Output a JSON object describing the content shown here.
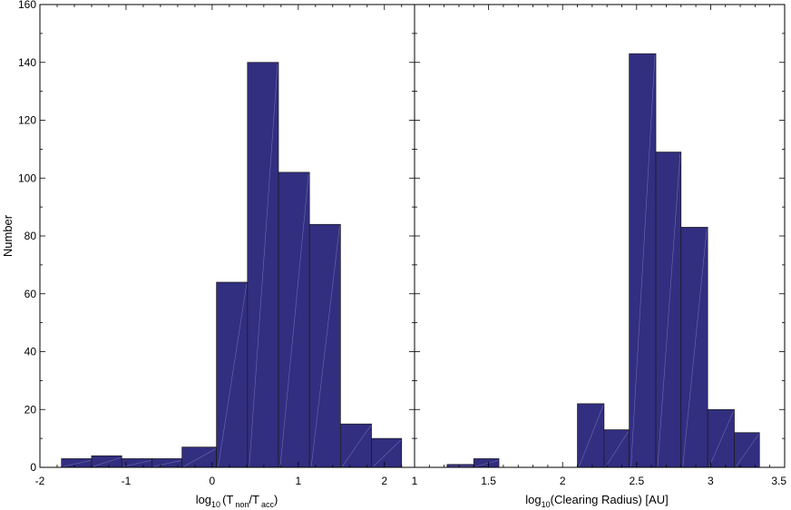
{
  "figure": {
    "ylabel": "Number"
  },
  "chart_data": [
    {
      "type": "bar",
      "xlabel_main": "log",
      "xlabel_sub1": "10",
      "xlabel_open": "(T",
      "xlabel_sub2": "non",
      "xlabel_mid": "/T",
      "xlabel_sub3": "acc",
      "xlabel_close": ")",
      "ylabel": "Number",
      "xlim": [
        -2,
        2.35
      ],
      "ylim": [
        0,
        160
      ],
      "x_ticks": [
        -2,
        -1,
        0,
        1,
        2
      ],
      "x_tick_labels": [
        "-2",
        "-1",
        "0",
        "1",
        "2"
      ],
      "y_ticks": [
        0,
        20,
        40,
        60,
        80,
        100,
        120,
        140,
        160
      ],
      "y_tick_labels": [
        "0",
        "20",
        "40",
        "60",
        "80",
        "100",
        "120",
        "140",
        "160"
      ],
      "bins": [
        {
          "x0": -1.75,
          "x1": -1.4,
          "value": 3
        },
        {
          "x0": -1.4,
          "x1": -1.05,
          "value": 4
        },
        {
          "x0": -1.05,
          "x1": -0.7,
          "value": 3
        },
        {
          "x0": -0.7,
          "x1": -0.35,
          "value": 3
        },
        {
          "x0": -0.35,
          "x1": 0.05,
          "value": 7
        },
        {
          "x0": 0.05,
          "x1": 0.41,
          "value": 64
        },
        {
          "x0": 0.41,
          "x1": 0.77,
          "value": 140
        },
        {
          "x0": 0.77,
          "x1": 1.13,
          "value": 102
        },
        {
          "x0": 1.13,
          "x1": 1.49,
          "value": 84
        },
        {
          "x0": 1.49,
          "x1": 1.85,
          "value": 15
        },
        {
          "x0": 1.85,
          "x1": 2.2,
          "value": 10
        }
      ],
      "bar_color": "#322E80",
      "grid": false
    },
    {
      "type": "bar",
      "xlabel_pre": "log",
      "xlabel_sub": "10",
      "xlabel_post": "(Clearing Radius) [AU]",
      "xlim": [
        1,
        3.5
      ],
      "ylim": [
        0,
        160
      ],
      "x_ticks": [
        1,
        1.5,
        2,
        2.5,
        3,
        3.5
      ],
      "x_tick_labels": [
        "1",
        "1.5",
        "2",
        "2.5",
        "3",
        "3.5"
      ],
      "bins": [
        {
          "x0": 1.22,
          "x1": 1.4,
          "value": 1
        },
        {
          "x0": 1.4,
          "x1": 1.57,
          "value": 3
        },
        {
          "x0": 2.1,
          "x1": 2.28,
          "value": 22
        },
        {
          "x0": 2.28,
          "x1": 2.45,
          "value": 13
        },
        {
          "x0": 2.45,
          "x1": 2.63,
          "value": 143
        },
        {
          "x0": 2.63,
          "x1": 2.8,
          "value": 109
        },
        {
          "x0": 2.8,
          "x1": 2.98,
          "value": 83
        },
        {
          "x0": 2.98,
          "x1": 3.16,
          "value": 20
        },
        {
          "x0": 3.16,
          "x1": 3.33,
          "value": 12
        }
      ],
      "bar_color": "#322E80",
      "grid": false
    }
  ]
}
